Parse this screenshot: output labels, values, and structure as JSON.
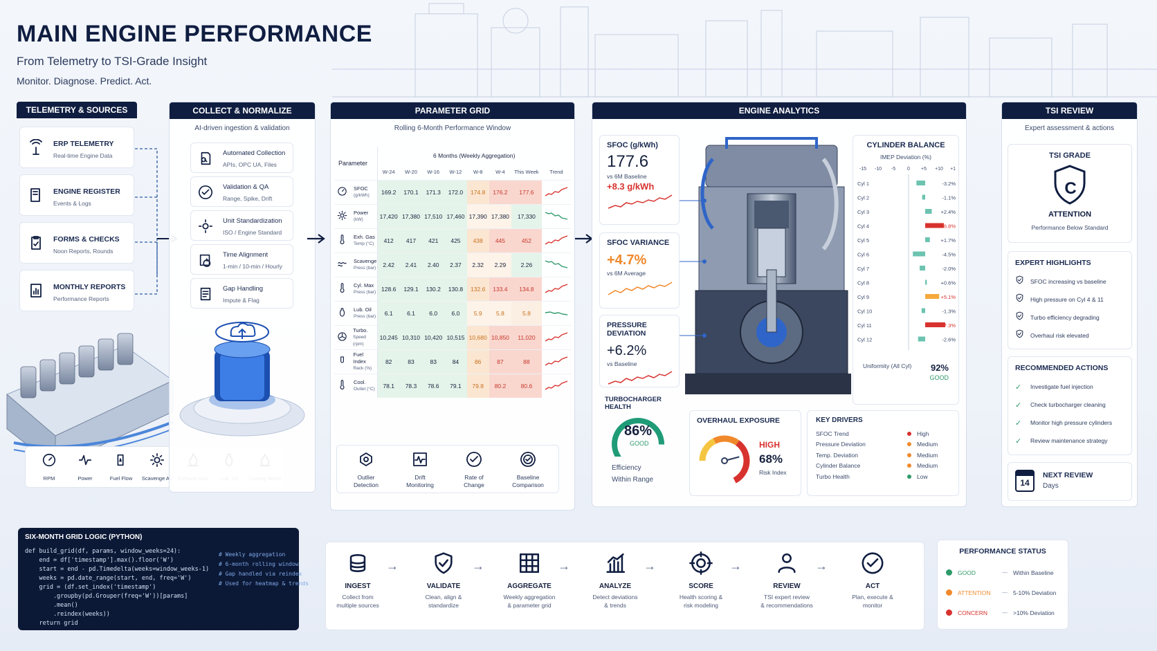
{
  "header": {
    "title": "MAIN ENGINE PERFORMANCE",
    "subtitle": "From Telemetry to TSI-Grade Insight",
    "tagline": "Monitor. Diagnose. Predict. Act."
  },
  "telemetry": {
    "title": "TELEMETRY & SOURCES",
    "items": [
      {
        "title": "ERP TELEMETRY",
        "sub": "Real-time Engine Data",
        "icon": "antenna-icon"
      },
      {
        "title": "ENGINE REGISTER",
        "sub": "Events & Logs",
        "icon": "book-icon"
      },
      {
        "title": "FORMS & CHECKS",
        "sub": "Noon Reports, Rounds",
        "icon": "clipboard-icon"
      },
      {
        "title": "MONTHLY REPORTS",
        "sub": "Performance Reports",
        "icon": "report-icon"
      }
    ],
    "sensors": [
      "RPM",
      "Power",
      "Fuel Flow",
      "Scavenge Air",
      "Exhaust Gas",
      "Lub. Oil",
      "Cooling Water"
    ]
  },
  "collect": {
    "title": "COLLECT & NORMALIZE",
    "sub": "AI-driven ingestion & validation",
    "items": [
      {
        "title": "Automated Collection",
        "sub": "APIs, OPC UA, Files"
      },
      {
        "title": "Validation & QA",
        "sub": "Range, Spike, Drift"
      },
      {
        "title": "Unit Standardization",
        "sub": "ISO / Engine Standard"
      },
      {
        "title": "Time Alignment",
        "sub": "1-min / 10-min / Hourly"
      },
      {
        "title": "Gap Handling",
        "sub": "Impute & Flag"
      }
    ]
  },
  "grid": {
    "title": "PARAMETER GRID",
    "sub": "Rolling 6-Month Performance Window",
    "param_header": "Parameter",
    "group_header": "6 Months (Weekly Aggregation)",
    "columns": [
      "W-24",
      "W-20",
      "W-16",
      "W-12",
      "W-8",
      "W-4",
      "This Week",
      "Trend"
    ],
    "rows": [
      {
        "name": "SFOC",
        "unit": "(g/kWh)",
        "values": [
          "169.2",
          "170.1",
          "171.3",
          "172.0",
          "174.8",
          "176.2",
          "177.6"
        ],
        "trend": "up"
      },
      {
        "name": "Power",
        "unit": "(kW)",
        "values": [
          "17,420",
          "17,380",
          "17,510",
          "17,460",
          "17,390",
          "17,380",
          "17,330"
        ],
        "trend": "down"
      },
      {
        "name": "Exh. Gas",
        "unit": "Temp (°C)",
        "values": [
          "412",
          "417",
          "421",
          "425",
          "438",
          "445",
          "452"
        ],
        "trend": "up"
      },
      {
        "name": "Scavenge",
        "unit": "Press (bar)",
        "values": [
          "2.42",
          "2.41",
          "2.40",
          "2.37",
          "2.32",
          "2.29",
          "2.26"
        ],
        "trend": "down"
      },
      {
        "name": "Cyl. Max",
        "unit": "Press (bar)",
        "values": [
          "128.6",
          "129.1",
          "130.2",
          "130.8",
          "132.6",
          "133.4",
          "134.8"
        ],
        "trend": "up"
      },
      {
        "name": "Lub. Oil",
        "unit": "Press (bar)",
        "values": [
          "6.1",
          "6.1",
          "6.0",
          "6.0",
          "5.9",
          "5.8",
          "5.8"
        ],
        "trend": "flat"
      },
      {
        "name": "Turbo.",
        "unit": "Speed (rpm)",
        "values": [
          "10,245",
          "10,310",
          "10,420",
          "10,515",
          "10,680",
          "10,850",
          "11,020"
        ],
        "trend": "up"
      },
      {
        "name": "Fuel Index",
        "unit": "Rack (%)",
        "values": [
          "82",
          "83",
          "83",
          "84",
          "86",
          "87",
          "88"
        ],
        "trend": "up"
      },
      {
        "name": "Cool.",
        "unit": "Outlet (°C)",
        "values": [
          "78.1",
          "78.3",
          "78.6",
          "79.1",
          "79.8",
          "80.2",
          "80.6"
        ],
        "trend": "up"
      }
    ],
    "tools": [
      {
        "label": "Outlier Detection",
        "icon": "target-icon"
      },
      {
        "label": "Drift Monitoring",
        "icon": "pulse-icon"
      },
      {
        "label": "Rate of Change",
        "icon": "check-circle-icon"
      },
      {
        "label": "Baseline Comparison",
        "icon": "compare-icon"
      }
    ]
  },
  "analytics": {
    "title": "ENGINE ANALYTICS",
    "sfoc": {
      "label": "SFOC (g/kWh)",
      "value": "177.6",
      "vs": "vs 6M Baseline",
      "delta": "+8.3 g/kWh"
    },
    "variance": {
      "label": "SFOC VARIANCE",
      "value": "+4.7%",
      "vs": "vs 6M Average"
    },
    "pressure": {
      "label": "PRESSURE DEVIATION",
      "value": "+6.2%",
      "vs": "vs Baseline"
    },
    "turbo": {
      "label": "TURBOCHARGER HEALTH",
      "value": "86%",
      "status": "GOOD",
      "fill": 0.86,
      "note1": "Efficiency",
      "note2": "Within Range"
    },
    "overhaul": {
      "label": "OVERHAUL EXPOSURE",
      "status": "HIGH",
      "value": "68%",
      "note": "Risk Index",
      "level": 0.68
    },
    "drivers": {
      "label": "KEY DRIVERS",
      "items": [
        {
          "name": "SFOC Trend",
          "level": "High",
          "color": "#d8322e"
        },
        {
          "name": "Pressure Deviation",
          "level": "Medium",
          "color": "#f0892b"
        },
        {
          "name": "Temp. Deviation",
          "level": "Medium",
          "color": "#f0892b"
        },
        {
          "name": "Cylinder Balance",
          "level": "Medium",
          "color": "#f0892b"
        },
        {
          "name": "Turbo Health",
          "level": "Low",
          "color": "#2e9a6a"
        }
      ]
    },
    "cylinder": {
      "title": "CYLINDER BALANCE",
      "sub": "IMEP Deviation (%)",
      "axis": [
        "-15",
        "-10",
        "-5",
        "0",
        "+5",
        "+10",
        "+15"
      ],
      "rows": [
        {
          "name": "Cyl 1",
          "value": -3.2,
          "label": "-3.2%"
        },
        {
          "name": "Cyl 2",
          "value": -1.1,
          "label": "-1.1%"
        },
        {
          "name": "Cyl 3",
          "value": 2.4,
          "label": "+2.4%"
        },
        {
          "name": "Cyl 4",
          "value": 6.8,
          "label": "+6.8%"
        },
        {
          "name": "Cyl 5",
          "value": 1.7,
          "label": "+1.7%"
        },
        {
          "name": "Cyl 6",
          "value": -4.5,
          "label": "-4.5%"
        },
        {
          "name": "Cyl 7",
          "value": -2.0,
          "label": "-2.0%"
        },
        {
          "name": "Cyl 8",
          "value": 0.6,
          "label": "+0.6%"
        },
        {
          "name": "Cyl 9",
          "value": 5.1,
          "label": "+5.1%"
        },
        {
          "name": "Cyl 10",
          "value": -1.3,
          "label": "-1.3%"
        },
        {
          "name": "Cyl 11",
          "value": 7.3,
          "label": "+7.3%"
        },
        {
          "name": "Cyl 12",
          "value": -2.6,
          "label": "-2.6%"
        }
      ],
      "uniformity_label": "Uniformity (All Cyl)",
      "uniformity_value": "92%",
      "uniformity_status": "GOOD"
    }
  },
  "tsi": {
    "title": "TSI REVIEW",
    "sub": "Expert assessment & actions",
    "grade_label": "TSI GRADE",
    "grade": "C",
    "grade_status": "ATTENTION",
    "grade_note": "Performance Below Standard",
    "highlights_title": "EXPERT HIGHLIGHTS",
    "highlights": [
      "SFOC increasing vs baseline",
      "High pressure on Cyl 4 & 11",
      "Turbo efficiency degrading",
      "Overhaul risk elevated"
    ],
    "actions_title": "RECOMMENDED ACTIONS",
    "actions": [
      "Investigate fuel injection",
      "Check turbocharger cleaning",
      "Monitor high pressure cylinders",
      "Review maintenance strategy"
    ],
    "next_review_label": "NEXT REVIEW",
    "next_review_days": "14",
    "next_review_unit": "Days"
  },
  "code": {
    "title": "SIX-MONTH GRID LOGIC (PYTHON)",
    "lines": [
      "def build_grid(df, params, window_weeks=24):",
      "    end = df['timestamp'].max().floor('W')",
      "    start = end - pd.Timedelta(weeks=window_weeks-1)",
      "    weeks = pd.date_range(start, end, freq='W')",
      "    grid = (df.set_index('timestamp')",
      "        .groupby(pd.Grouper(freq='W'))[params]",
      "        .mean()",
      "        .reindex(weeks))",
      "    return grid"
    ],
    "comments": [
      "# Weekly aggregation",
      "# 6-month rolling window",
      "# Gap handled via reindex",
      "# Used for heatmap & trends"
    ]
  },
  "flow": [
    {
      "title": "INGEST",
      "desc1": "Collect from",
      "desc2": "multiple sources",
      "icon": "database-icon"
    },
    {
      "title": "VALIDATE",
      "desc1": "Clean, align &",
      "desc2": "standardize",
      "icon": "shield-check-icon"
    },
    {
      "title": "AGGREGATE",
      "desc1": "Weekly aggregation",
      "desc2": "& parameter grid",
      "icon": "grid-icon"
    },
    {
      "title": "ANALYZE",
      "desc1": "Detect deviations",
      "desc2": "& trends",
      "icon": "bar-chart-icon"
    },
    {
      "title": "SCORE",
      "desc1": "Health scoring &",
      "desc2": "risk modeling",
      "icon": "crosshair-icon"
    },
    {
      "title": "REVIEW",
      "desc1": "TSI expert review",
      "desc2": "& recommendations",
      "icon": "user-icon"
    },
    {
      "title": "ACT",
      "desc1": "Plan, execute &",
      "desc2": "monitor",
      "icon": "check-circle-icon"
    }
  ],
  "status": {
    "title": "PERFORMANCE STATUS",
    "items": [
      {
        "name": "GOOD",
        "desc": "Within Baseline",
        "color": "#2e9a6a"
      },
      {
        "name": "ATTENTION",
        "desc": "5-10% Deviation",
        "color": "#f0892b"
      },
      {
        "name": "CONCERN",
        "desc": ">10% Deviation",
        "color": "#d8322e"
      }
    ]
  }
}
